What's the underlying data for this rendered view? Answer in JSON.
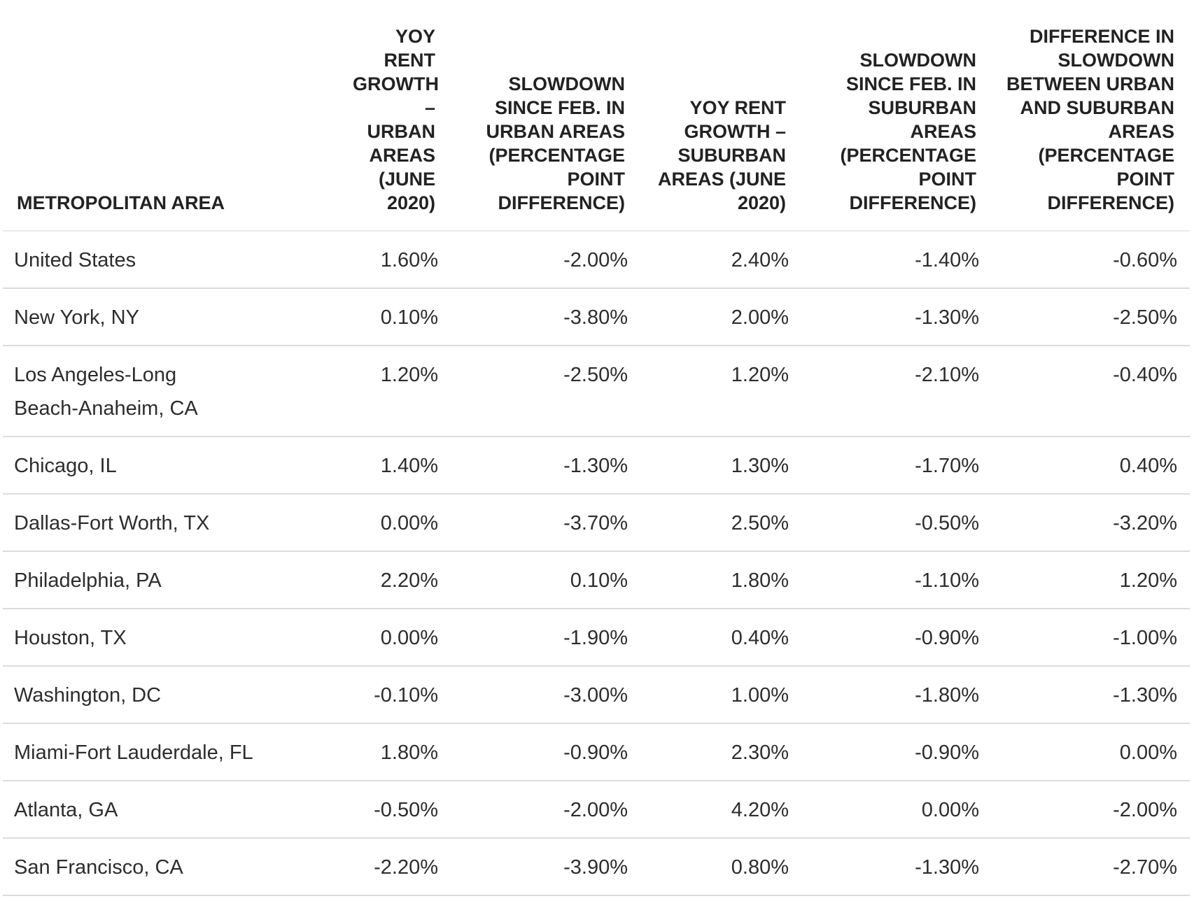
{
  "chart_data": {
    "type": "table",
    "columns": [
      "METROPOLITAN AREA",
      "YOY RENT GROWTH – URBAN AREAS (JUNE 2020)",
      "SLOWDOWN SINCE FEB. IN URBAN AREAS (PERCENTAGE POINT DIFFERENCE)",
      "YOY RENT GROWTH – SUBURBAN AREAS (JUNE 2020)",
      "SLOWDOWN SINCE FEB. IN SUBURBAN AREAS (PERCENTAGE POINT DIFFERENCE)",
      "DIFFERENCE IN SLOWDOWN BETWEEN URBAN AND SUBURBAN AREAS (PERCENTAGE POINT DIFFERENCE)"
    ],
    "rows": [
      [
        "United States",
        "1.60%",
        "-2.00%",
        "2.40%",
        "-1.40%",
        "-0.60%"
      ],
      [
        "New York, NY",
        "0.10%",
        "-3.80%",
        "2.00%",
        "-1.30%",
        "-2.50%"
      ],
      [
        "Los Angeles-Long Beach-Anaheim, CA",
        "1.20%",
        "-2.50%",
        "1.20%",
        "-2.10%",
        "-0.40%"
      ],
      [
        "Chicago, IL",
        "1.40%",
        "-1.30%",
        "1.30%",
        "-1.70%",
        "0.40%"
      ],
      [
        "Dallas-Fort Worth, TX",
        "0.00%",
        "-3.70%",
        "2.50%",
        "-0.50%",
        "-3.20%"
      ],
      [
        "Philadelphia, PA",
        "2.20%",
        "0.10%",
        "1.80%",
        "-1.10%",
        "1.20%"
      ],
      [
        "Houston, TX",
        "0.00%",
        "-1.90%",
        "0.40%",
        "-0.90%",
        "-1.00%"
      ],
      [
        "Washington, DC",
        "-0.10%",
        "-3.00%",
        "1.00%",
        "-1.80%",
        "-1.30%"
      ],
      [
        "Miami-Fort Lauderdale, FL",
        "1.80%",
        "-0.90%",
        "2.30%",
        "-0.90%",
        "0.00%"
      ],
      [
        "Atlanta, GA",
        "-0.50%",
        "-2.00%",
        "4.20%",
        "0.00%",
        "-2.00%"
      ],
      [
        "San Francisco, CA",
        "-2.20%",
        "-3.90%",
        "0.80%",
        "-1.30%",
        "-2.70%"
      ]
    ]
  }
}
